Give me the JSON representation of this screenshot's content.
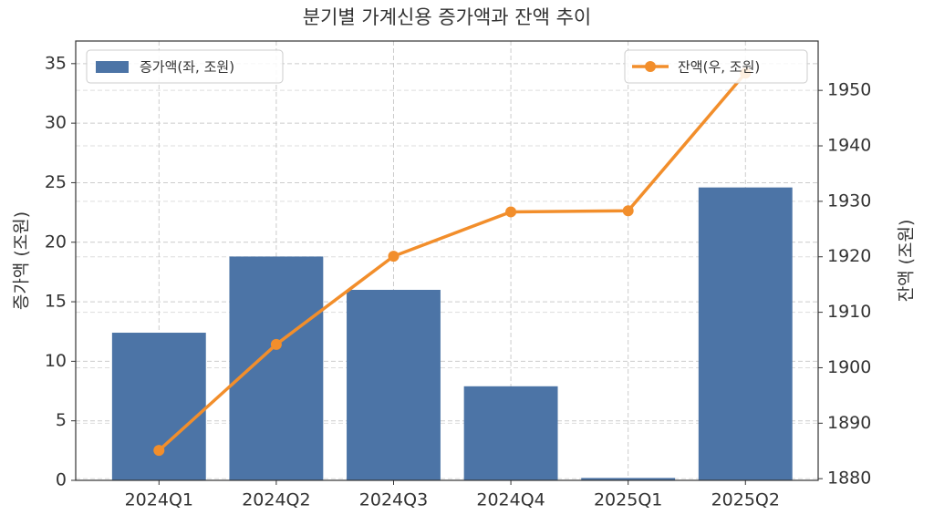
{
  "chart_data": {
    "type": "bar",
    "title": "분기별 가계신용 증가액과 잔액 추이",
    "categories": [
      "2024Q1",
      "2024Q2",
      "2024Q3",
      "2024Q4",
      "2025Q1",
      "2025Q2"
    ],
    "series": [
      {
        "name": "증가액(좌, 조원)",
        "type": "bar",
        "color": "#4c74a6",
        "values": [
          12.4,
          18.8,
          16.0,
          7.9,
          0.2,
          24.6
        ]
      },
      {
        "name": "잔액(우, 조원)",
        "type": "line",
        "axis": "y2",
        "color": "#f28e2b",
        "values": [
          1885.1,
          1904.2,
          1920.1,
          1928.1,
          1928.3,
          1953.1
        ]
      }
    ],
    "ylabel": "증가액 (조원)",
    "y2label": "잔액 (조원)",
    "ylim": [
      0,
      36.9
    ],
    "yticks": [
      0,
      5,
      10,
      15,
      20,
      25,
      30,
      35
    ],
    "y2lim": [
      1879.7,
      1958.9
    ],
    "y2ticks": [
      1880,
      1890,
      1900,
      1910,
      1920,
      1930,
      1940,
      1950
    ],
    "grid": true
  }
}
